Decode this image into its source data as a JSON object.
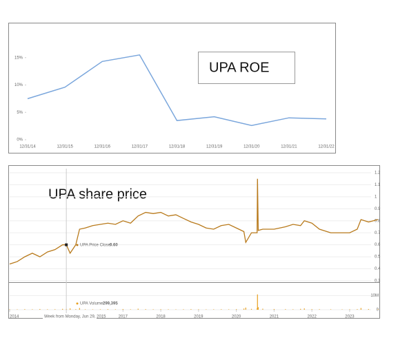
{
  "chart_data": [
    {
      "type": "line",
      "annotation": "UPA ROE",
      "categories": [
        "12/31/14",
        "12/31/15",
        "12/31/16",
        "12/31/17",
        "12/31/18",
        "12/31/19",
        "12/31/20",
        "12/31/21",
        "12/31/22"
      ],
      "values": [
        7.5,
        9.6,
        14.3,
        15.5,
        3.5,
        4.2,
        2.6,
        4.0,
        3.8
      ],
      "color": "#7aa6dc",
      "ylim": [
        0,
        20
      ],
      "yticks": [
        {
          "value": 0,
          "label": "0%"
        },
        {
          "value": 5,
          "label": "5%"
        },
        {
          "value": 10,
          "label": "10%"
        },
        {
          "value": 15,
          "label": "15%"
        }
      ]
    },
    {
      "type": "price-volume",
      "annotation": "UPA share price",
      "x": [
        2014.0,
        2014.2,
        2014.4,
        2014.6,
        2014.8,
        2015.0,
        2015.2,
        2015.4,
        2015.5,
        2015.6,
        2015.75,
        2015.85,
        2016.0,
        2016.2,
        2016.4,
        2016.6,
        2016.8,
        2017.0,
        2017.2,
        2017.4,
        2017.6,
        2017.8,
        2018.0,
        2018.2,
        2018.4,
        2018.6,
        2018.8,
        2019.0,
        2019.2,
        2019.4,
        2019.6,
        2019.8,
        2020.0,
        2020.2,
        2020.25,
        2020.4,
        2020.55,
        2020.56,
        2020.58,
        2020.7,
        2021.0,
        2021.3,
        2021.5,
        2021.7,
        2021.8,
        2022.0,
        2022.2,
        2022.5,
        2022.8,
        2023.0,
        2023.2,
        2023.3,
        2023.5,
        2023.75
      ],
      "series": [
        {
          "color": "#b8791a",
          "values": [
            0.44,
            0.46,
            0.5,
            0.53,
            0.5,
            0.54,
            0.56,
            0.6,
            0.6,
            0.53,
            0.6,
            0.73,
            0.74,
            0.76,
            0.77,
            0.78,
            0.77,
            0.8,
            0.78,
            0.84,
            0.87,
            0.86,
            0.87,
            0.84,
            0.85,
            0.82,
            0.79,
            0.77,
            0.74,
            0.73,
            0.76,
            0.77,
            0.74,
            0.71,
            0.62,
            0.7,
            0.7,
            1.15,
            0.72,
            0.73,
            0.73,
            0.75,
            0.77,
            0.76,
            0.8,
            0.78,
            0.73,
            0.7,
            0.7,
            0.7,
            0.73,
            0.81,
            0.79,
            0.81
          ]
        },
        {
          "color": "#e8a020",
          "axis": "y2",
          "values": [
            300000,
            250000,
            400000,
            300000,
            500000,
            300000,
            350000,
            600000,
            299395,
            900000,
            400000,
            1200000,
            300000,
            250000,
            300000,
            400000,
            300000,
            500000,
            300000,
            700000,
            400000,
            300000,
            350000,
            300000,
            250000,
            300000,
            400000,
            300000,
            250000,
            300000,
            350000,
            300000,
            400000,
            800000,
            1500000,
            600000,
            1000000,
            10800000,
            1800000,
            700000,
            500000,
            400000,
            300000,
            600000,
            900000,
            400000,
            350000,
            300000,
            250000,
            300000,
            400000,
            1200000,
            500000,
            400000
          ]
        }
      ],
      "xlim": [
        2014,
        2023.75
      ],
      "xticks": [
        2014,
        2017,
        2018,
        2019,
        2020,
        2021,
        2022,
        2023
      ],
      "ylim": [
        0.3,
        1.2
      ],
      "yticks": [
        0.3,
        0.4,
        0.5,
        0.6,
        0.7,
        0.8,
        0.9,
        1,
        1.1,
        1.2
      ],
      "y2lim": [
        0,
        18000000
      ],
      "y2ticks": [
        0,
        {
          "value": 10000000,
          "label": "10M"
        }
      ],
      "tooltip": {
        "index": 8,
        "date": "Week from Monday, Jun 29, 2015",
        "price_label": "UPA Price Close:",
        "price": "0.60",
        "volume_label": "UPA Volume:",
        "volume": "299,395"
      }
    }
  ]
}
